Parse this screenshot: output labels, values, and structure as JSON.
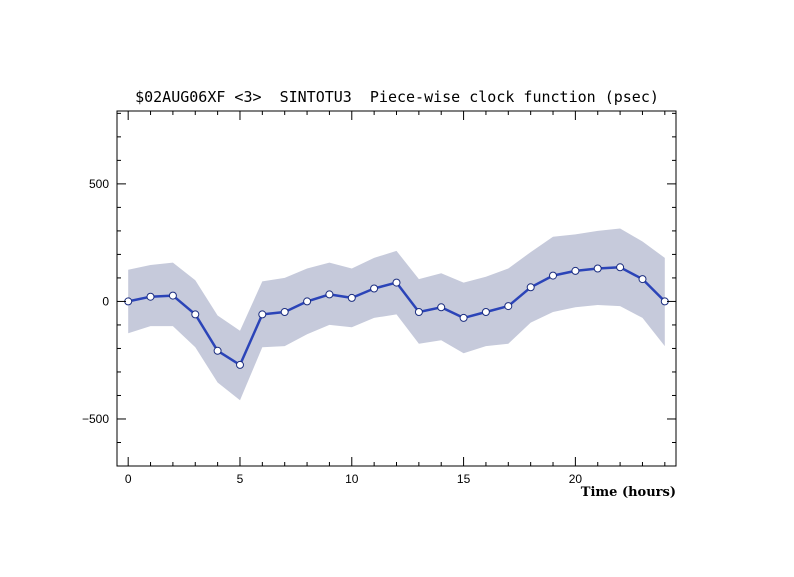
{
  "chart_data": {
    "type": "line",
    "title": "$02AUG06XF <3>  SINTOTU3  Piece-wise clock function (psec)",
    "xlabel": "Time (hours)",
    "ylabel": "",
    "xlim": [
      -0.5,
      24.5
    ],
    "ylim": [
      -700,
      810
    ],
    "x_ticks": [
      0,
      5,
      10,
      15,
      20
    ],
    "y_ticks": [
      -500,
      0,
      500
    ],
    "x": [
      0,
      1,
      2,
      3,
      4,
      5,
      6,
      7,
      8,
      9,
      10,
      11,
      12,
      13,
      14,
      15,
      16,
      17,
      18,
      19,
      20,
      21,
      22,
      23,
      24
    ],
    "series": [
      {
        "values": [
          0,
          20,
          25,
          -55,
          -210,
          -270,
          -55,
          -45,
          0,
          30,
          15,
          55,
          80,
          -45,
          -25,
          -70,
          -45,
          -20,
          60,
          110,
          130,
          140,
          145,
          95,
          0
        ],
        "upper": [
          135,
          155,
          165,
          90,
          -60,
          -125,
          85,
          100,
          140,
          165,
          140,
          185,
          215,
          95,
          120,
          80,
          105,
          140,
          210,
          275,
          285,
          300,
          310,
          255,
          185
        ],
        "lower": [
          -135,
          -105,
          -105,
          -195,
          -345,
          -420,
          -195,
          -190,
          -140,
          -100,
          -110,
          -70,
          -55,
          -180,
          -165,
          -220,
          -190,
          -180,
          -90,
          -45,
          -25,
          -15,
          -20,
          -70,
          -190
        ]
      }
    ],
    "grid": false,
    "legend": "none",
    "colors": {
      "line": "#2b44b8",
      "band": "#c6cadb",
      "marker_fill": "#ffffff",
      "marker_stroke": "#1c2e80",
      "axis": "#000000"
    }
  }
}
